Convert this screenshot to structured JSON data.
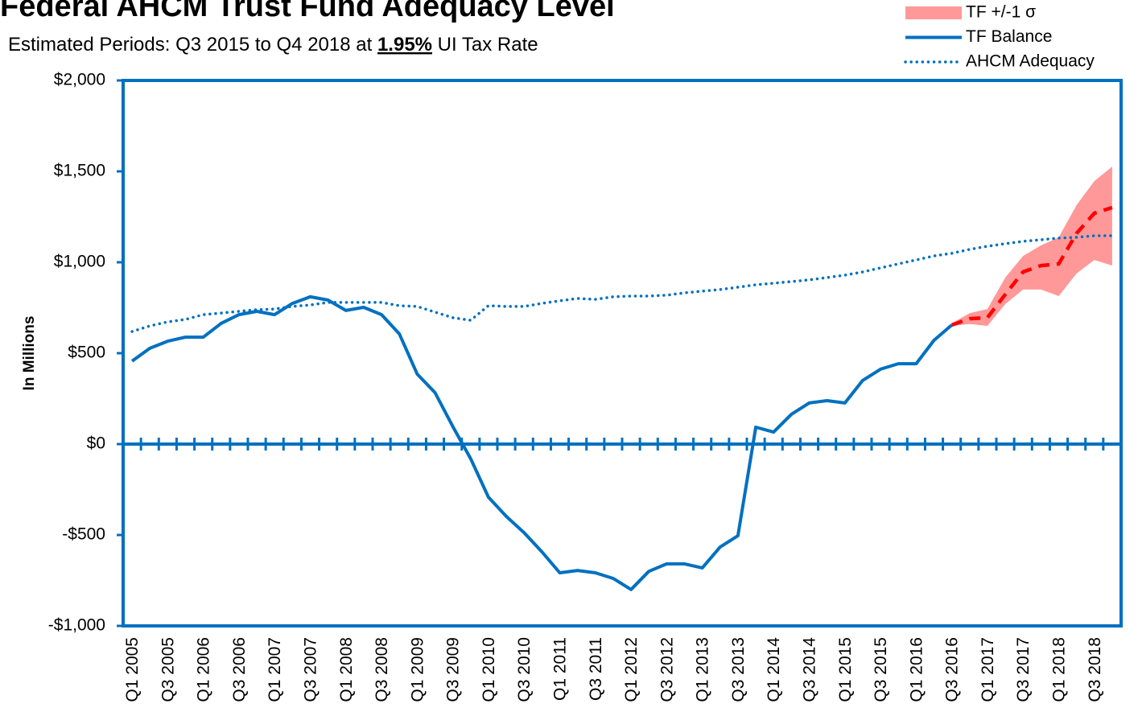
{
  "chart_data": {
    "type": "line",
    "title": "Federal AHCM Trust Fund Adequacy Level",
    "subtitle": [
      "Estimated Periods: Q3 2015 to Q4 2018 at ",
      "1.95%",
      " UI Tax Rate"
    ],
    "y_label": "In Millions",
    "categories": [
      "Q1 2005",
      null,
      "Q3 2005",
      null,
      "Q1 2006",
      null,
      "Q3 2006",
      null,
      "Q1 2007",
      null,
      "Q3 2007",
      null,
      "Q1 2008",
      null,
      "Q3 2008",
      null,
      "Q1 2009",
      null,
      "Q3 2009",
      null,
      "Q1 2010",
      null,
      "Q3 2010",
      null,
      "Q1 2011",
      null,
      "Q3 2011",
      null,
      "Q1 2012",
      null,
      "Q3 2012",
      null,
      "Q1 2013",
      null,
      "Q3 2013",
      null,
      "Q1 2014",
      null,
      "Q3 2014",
      null,
      "Q1 2015",
      null,
      "Q3 2015",
      null,
      "Q1 2016",
      null,
      "Q3 2016",
      null,
      "Q1 2017",
      null,
      "Q3 2017",
      null,
      "Q1 2018",
      null,
      "Q3 2018",
      null
    ],
    "ylim": [
      -1000,
      2000
    ],
    "yticks": [
      {
        "value": -1000,
        "label": "-$1,000"
      },
      {
        "value": -500,
        "label": "-$500"
      },
      {
        "value": 0,
        "label": "$0"
      },
      {
        "value": 500,
        "label": "$500"
      },
      {
        "value": 1000,
        "label": "$1,000"
      },
      {
        "value": 1500,
        "label": "$1,500"
      },
      {
        "value": 2000,
        "label": "$2,000"
      }
    ],
    "series": [
      {
        "name": "TF +/-1 σ",
        "color": "#ff9999",
        "style": "band",
        "lower": [
          null,
          null,
          null,
          null,
          null,
          null,
          null,
          null,
          null,
          null,
          null,
          null,
          null,
          null,
          null,
          null,
          null,
          null,
          null,
          null,
          null,
          null,
          null,
          null,
          null,
          null,
          null,
          null,
          null,
          null,
          null,
          null,
          null,
          null,
          null,
          null,
          null,
          null,
          null,
          null,
          null,
          null,
          null,
          null,
          null,
          null,
          650,
          660,
          650,
          770,
          850,
          850,
          814,
          938,
          1013,
          982
        ],
        "upper": [
          null,
          null,
          null,
          null,
          null,
          null,
          null,
          null,
          null,
          null,
          null,
          null,
          null,
          null,
          null,
          null,
          null,
          null,
          null,
          null,
          null,
          null,
          null,
          null,
          null,
          null,
          null,
          null,
          null,
          null,
          null,
          null,
          null,
          null,
          null,
          null,
          null,
          null,
          null,
          null,
          null,
          null,
          null,
          null,
          null,
          null,
          665,
          720,
          743,
          916,
          1035,
          1093,
          1137,
          1314,
          1447,
          1526
        ]
      },
      {
        "name": "TF Balance",
        "color": "#0070c0",
        "style": "solid",
        "values": [
          456,
          527,
          566,
          588,
          588,
          664,
          712,
          730,
          712,
          774,
          810,
          792,
          735,
          752,
          712,
          606,
          385,
          283,
          97,
          -80,
          -292,
          -398,
          -487,
          -593,
          -708,
          -695,
          -708,
          -739,
          -800,
          -700,
          -659,
          -659,
          -681,
          -566,
          -504,
          93,
          66,
          164,
          226,
          239,
          226,
          350,
          412,
          442,
          442,
          571,
          655,
          null,
          null,
          null,
          null,
          null,
          null,
          null,
          null,
          null
        ]
      },
      {
        "name": "AHCM Adequacy",
        "color": "#0070c0",
        "style": "dotted",
        "values": [
          619,
          650,
          672,
          686,
          712,
          721,
          730,
          739,
          743,
          757,
          765,
          779,
          779,
          779,
          779,
          761,
          757,
          726,
          695,
          681,
          761,
          757,
          757,
          774,
          788,
          801,
          796,
          810,
          814,
          814,
          819,
          832,
          841,
          850,
          863,
          876,
          885,
          894,
          903,
          916,
          929,
          947,
          969,
          991,
          1013,
          1035,
          1049,
          1071,
          1088,
          1102,
          1115,
          1124,
          1133,
          1137,
          1146,
          1146
        ]
      },
      {
        "color": "#ff0000",
        "style": "dashed",
        "values": [
          null,
          null,
          null,
          null,
          null,
          null,
          null,
          null,
          null,
          null,
          null,
          null,
          null,
          null,
          null,
          null,
          null,
          null,
          null,
          null,
          null,
          null,
          null,
          null,
          null,
          null,
          null,
          null,
          null,
          null,
          null,
          null,
          null,
          null,
          null,
          null,
          null,
          null,
          null,
          null,
          null,
          null,
          null,
          null,
          null,
          null,
          655,
          690,
          695,
          823,
          947,
          982,
          991,
          1159,
          1270,
          1301
        ]
      }
    ]
  }
}
